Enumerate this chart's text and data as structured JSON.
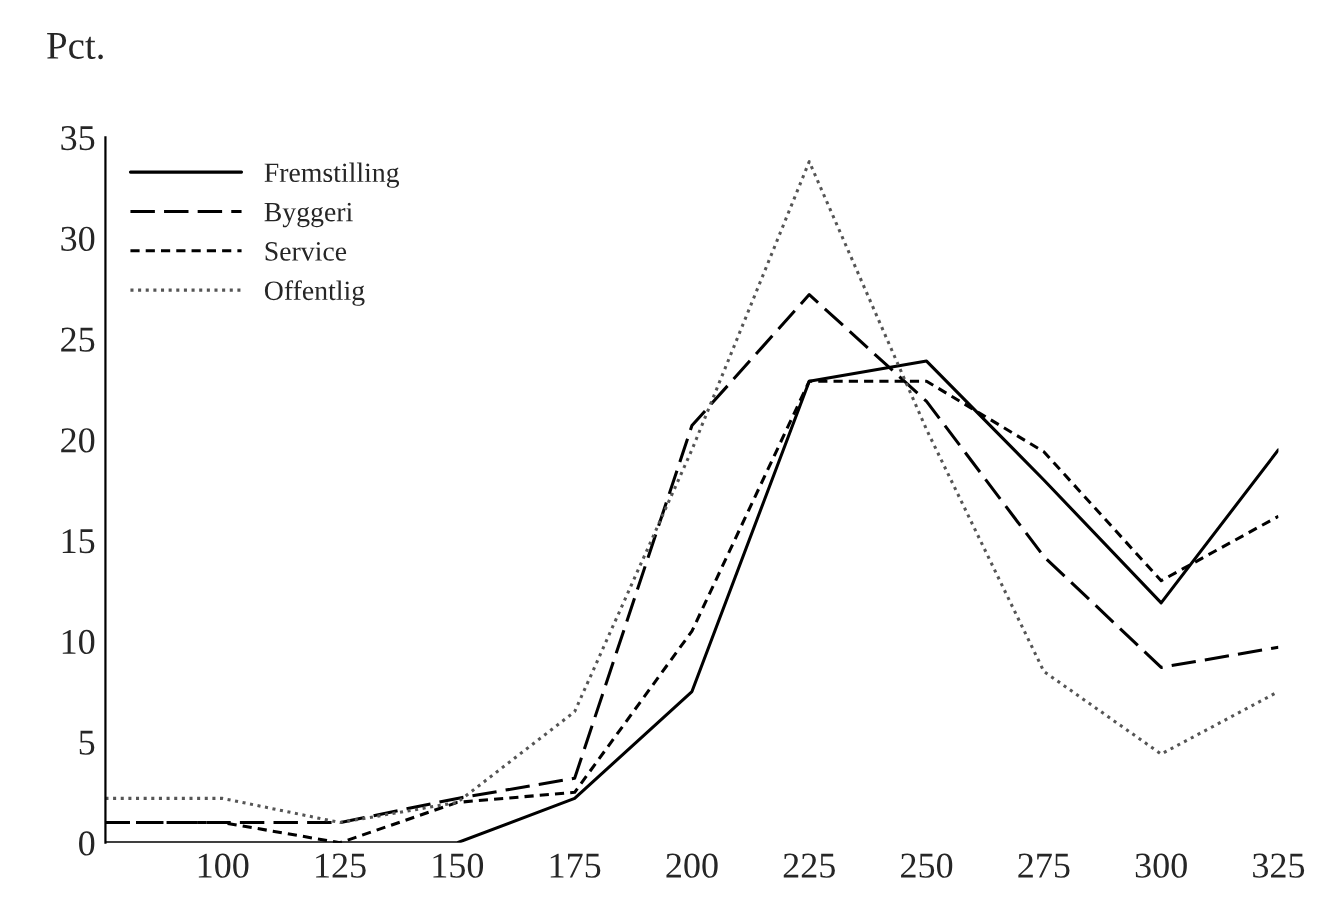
{
  "chart_data": {
    "type": "line",
    "ylabel": "Pct.",
    "x": [
      75,
      100,
      125,
      150,
      175,
      200,
      225,
      250,
      275,
      300,
      325
    ],
    "xlim": [
      75,
      325
    ],
    "xticks": [
      100,
      125,
      150,
      175,
      200,
      225,
      250,
      275,
      300,
      325
    ],
    "ylim": [
      0,
      35
    ],
    "yticks": [
      0,
      5,
      10,
      15,
      20,
      25,
      30,
      35
    ],
    "grid": false,
    "legend": "top left",
    "series": [
      {
        "name": "Fremstilling",
        "color": "#000000",
        "line_style": "solid",
        "values": [
          0,
          0,
          0,
          0,
          2.2,
          7.5,
          22.9,
          23.9,
          18,
          11.9,
          19.5
        ]
      },
      {
        "name": "Byggeri",
        "color": "#000000",
        "line_style": "longdash",
        "values": [
          1,
          1,
          1,
          2.2,
          3.2,
          20.7,
          27.2,
          21.9,
          14.2,
          8.7,
          9.7
        ]
      },
      {
        "name": "Service",
        "color": "#000000",
        "line_style": "dashed",
        "values": [
          1,
          1,
          0,
          2,
          2.5,
          10.5,
          22.9,
          22.9,
          19.4,
          13,
          16.2
        ]
      },
      {
        "name": "Offentlig",
        "color": "#555555",
        "line_style": "dotted",
        "values": [
          2.2,
          2.2,
          1,
          2,
          6.5,
          19.5,
          33.8,
          20.5,
          8.5,
          4.4,
          7.5
        ]
      }
    ]
  }
}
